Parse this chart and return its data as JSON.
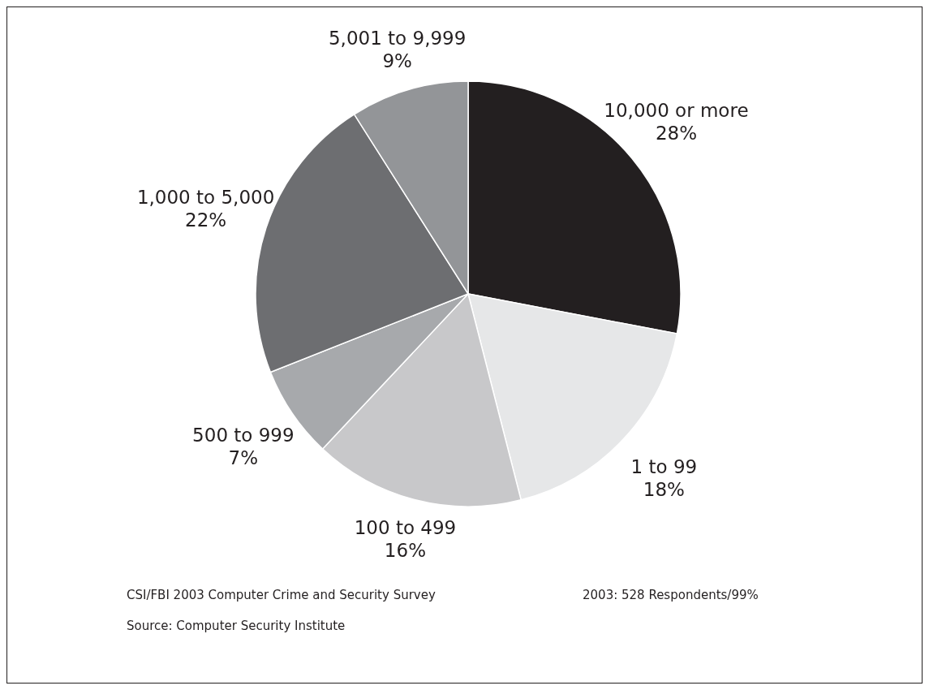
{
  "chart_data": {
    "type": "pie",
    "categories": [
      "10,000 or more",
      "1 to 99",
      "100 to 499",
      "500 to 999",
      "1,000 to 5,000",
      "5,001 to 9,999"
    ],
    "values": [
      28,
      18,
      16,
      7,
      22,
      9
    ],
    "value_labels": [
      "28%",
      "18%",
      "16%",
      "7%",
      "22%",
      "9%"
    ],
    "colors": [
      "#231f20",
      "#e6e7e8",
      "#c8c8ca",
      "#a7a9ac",
      "#6d6e71",
      "#939598"
    ],
    "annotations": [
      "CSI/FBI 2003 Computer Crime and Security Survey",
      "2003: 528 Respondents/99%",
      "Source: Computer Security Institute"
    ]
  }
}
